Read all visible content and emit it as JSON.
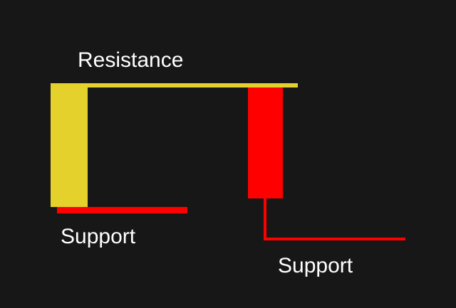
{
  "labels": {
    "resistance": "Resistance",
    "support_left": "Support",
    "support_right": "Support"
  },
  "colors": {
    "background": "#171717",
    "resistance": "#e5d12b",
    "support": "#ff0000",
    "text": "#ffffff"
  }
}
